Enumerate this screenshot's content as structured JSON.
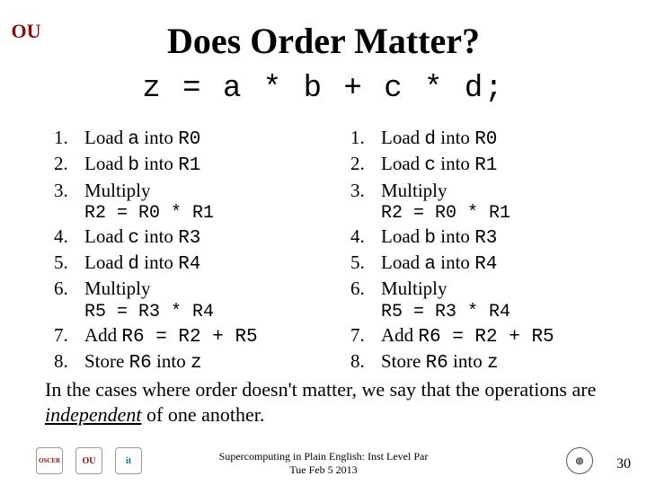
{
  "colors": {
    "brand": "#8c0b0b",
    "text": "#000000",
    "background": "#ffffff"
  },
  "logo": {
    "text": "OU"
  },
  "title": "Does Order Matter?",
  "equation": "z = a * b + c * d;",
  "left_steps": [
    {
      "n": "1.",
      "body_pre": "Load ",
      "code1": "a",
      "body_mid": " into ",
      "code2": "R0",
      "sub": ""
    },
    {
      "n": "2.",
      "body_pre": "Load ",
      "code1": "b",
      "body_mid": " into ",
      "code2": "R1",
      "sub": ""
    },
    {
      "n": "3.",
      "body_pre": "Multiply",
      "code1": "",
      "body_mid": "",
      "code2": "",
      "sub": "R2 = R0 * R1"
    },
    {
      "n": "4.",
      "body_pre": "Load ",
      "code1": "c",
      "body_mid": " into ",
      "code2": "R3",
      "sub": ""
    },
    {
      "n": "5.",
      "body_pre": "Load ",
      "code1": "d",
      "body_mid": " into ",
      "code2": "R4",
      "sub": ""
    },
    {
      "n": "6.",
      "body_pre": "Multiply",
      "code1": "",
      "body_mid": "",
      "code2": "",
      "sub": "R5 = R3 * R4"
    },
    {
      "n": "7.",
      "body_pre": "Add ",
      "code1": "R6 = R2 + R5",
      "body_mid": "",
      "code2": "",
      "sub": ""
    },
    {
      "n": "8.",
      "body_pre": "Store ",
      "code1": "R6",
      "body_mid": " into ",
      "code2": "z",
      "sub": ""
    }
  ],
  "right_steps": [
    {
      "n": "1.",
      "body_pre": "Load ",
      "code1": "d",
      "body_mid": " into ",
      "code2": "R0",
      "sub": ""
    },
    {
      "n": "2.",
      "body_pre": "Load ",
      "code1": "c",
      "body_mid": " into ",
      "code2": "R1",
      "sub": ""
    },
    {
      "n": "3.",
      "body_pre": "Multiply",
      "code1": "",
      "body_mid": "",
      "code2": "",
      "sub": "R2 = R0 * R1"
    },
    {
      "n": "4.",
      "body_pre": "Load ",
      "code1": "b",
      "body_mid": " into ",
      "code2": "R3",
      "sub": ""
    },
    {
      "n": "5.",
      "body_pre": "Load ",
      "code1": "a",
      "body_mid": " into ",
      "code2": "R4",
      "sub": ""
    },
    {
      "n": "6.",
      "body_pre": "Multiply",
      "code1": "",
      "body_mid": "",
      "code2": "",
      "sub": "R5 = R3 * R4"
    },
    {
      "n": "7.",
      "body_pre": "Add ",
      "code1": "R6 = R2 + R5",
      "body_mid": "",
      "code2": "",
      "sub": ""
    },
    {
      "n": "8.",
      "body_pre": "Store ",
      "code1": "R6",
      "body_mid": " into ",
      "code2": "z",
      "sub": ""
    }
  ],
  "conclusion": {
    "pre": "In the cases where order doesn't matter, we say that the operations are ",
    "emph": "independent",
    "post": " of one another."
  },
  "footer": {
    "line1": "Supercomputing in Plain English: Inst Level Par",
    "line2": "Tue Feb 5 2013"
  },
  "pagenum": "30",
  "footer_logos": {
    "a": "OSCER",
    "b": "OU",
    "c": "it",
    "globe": "◍"
  }
}
